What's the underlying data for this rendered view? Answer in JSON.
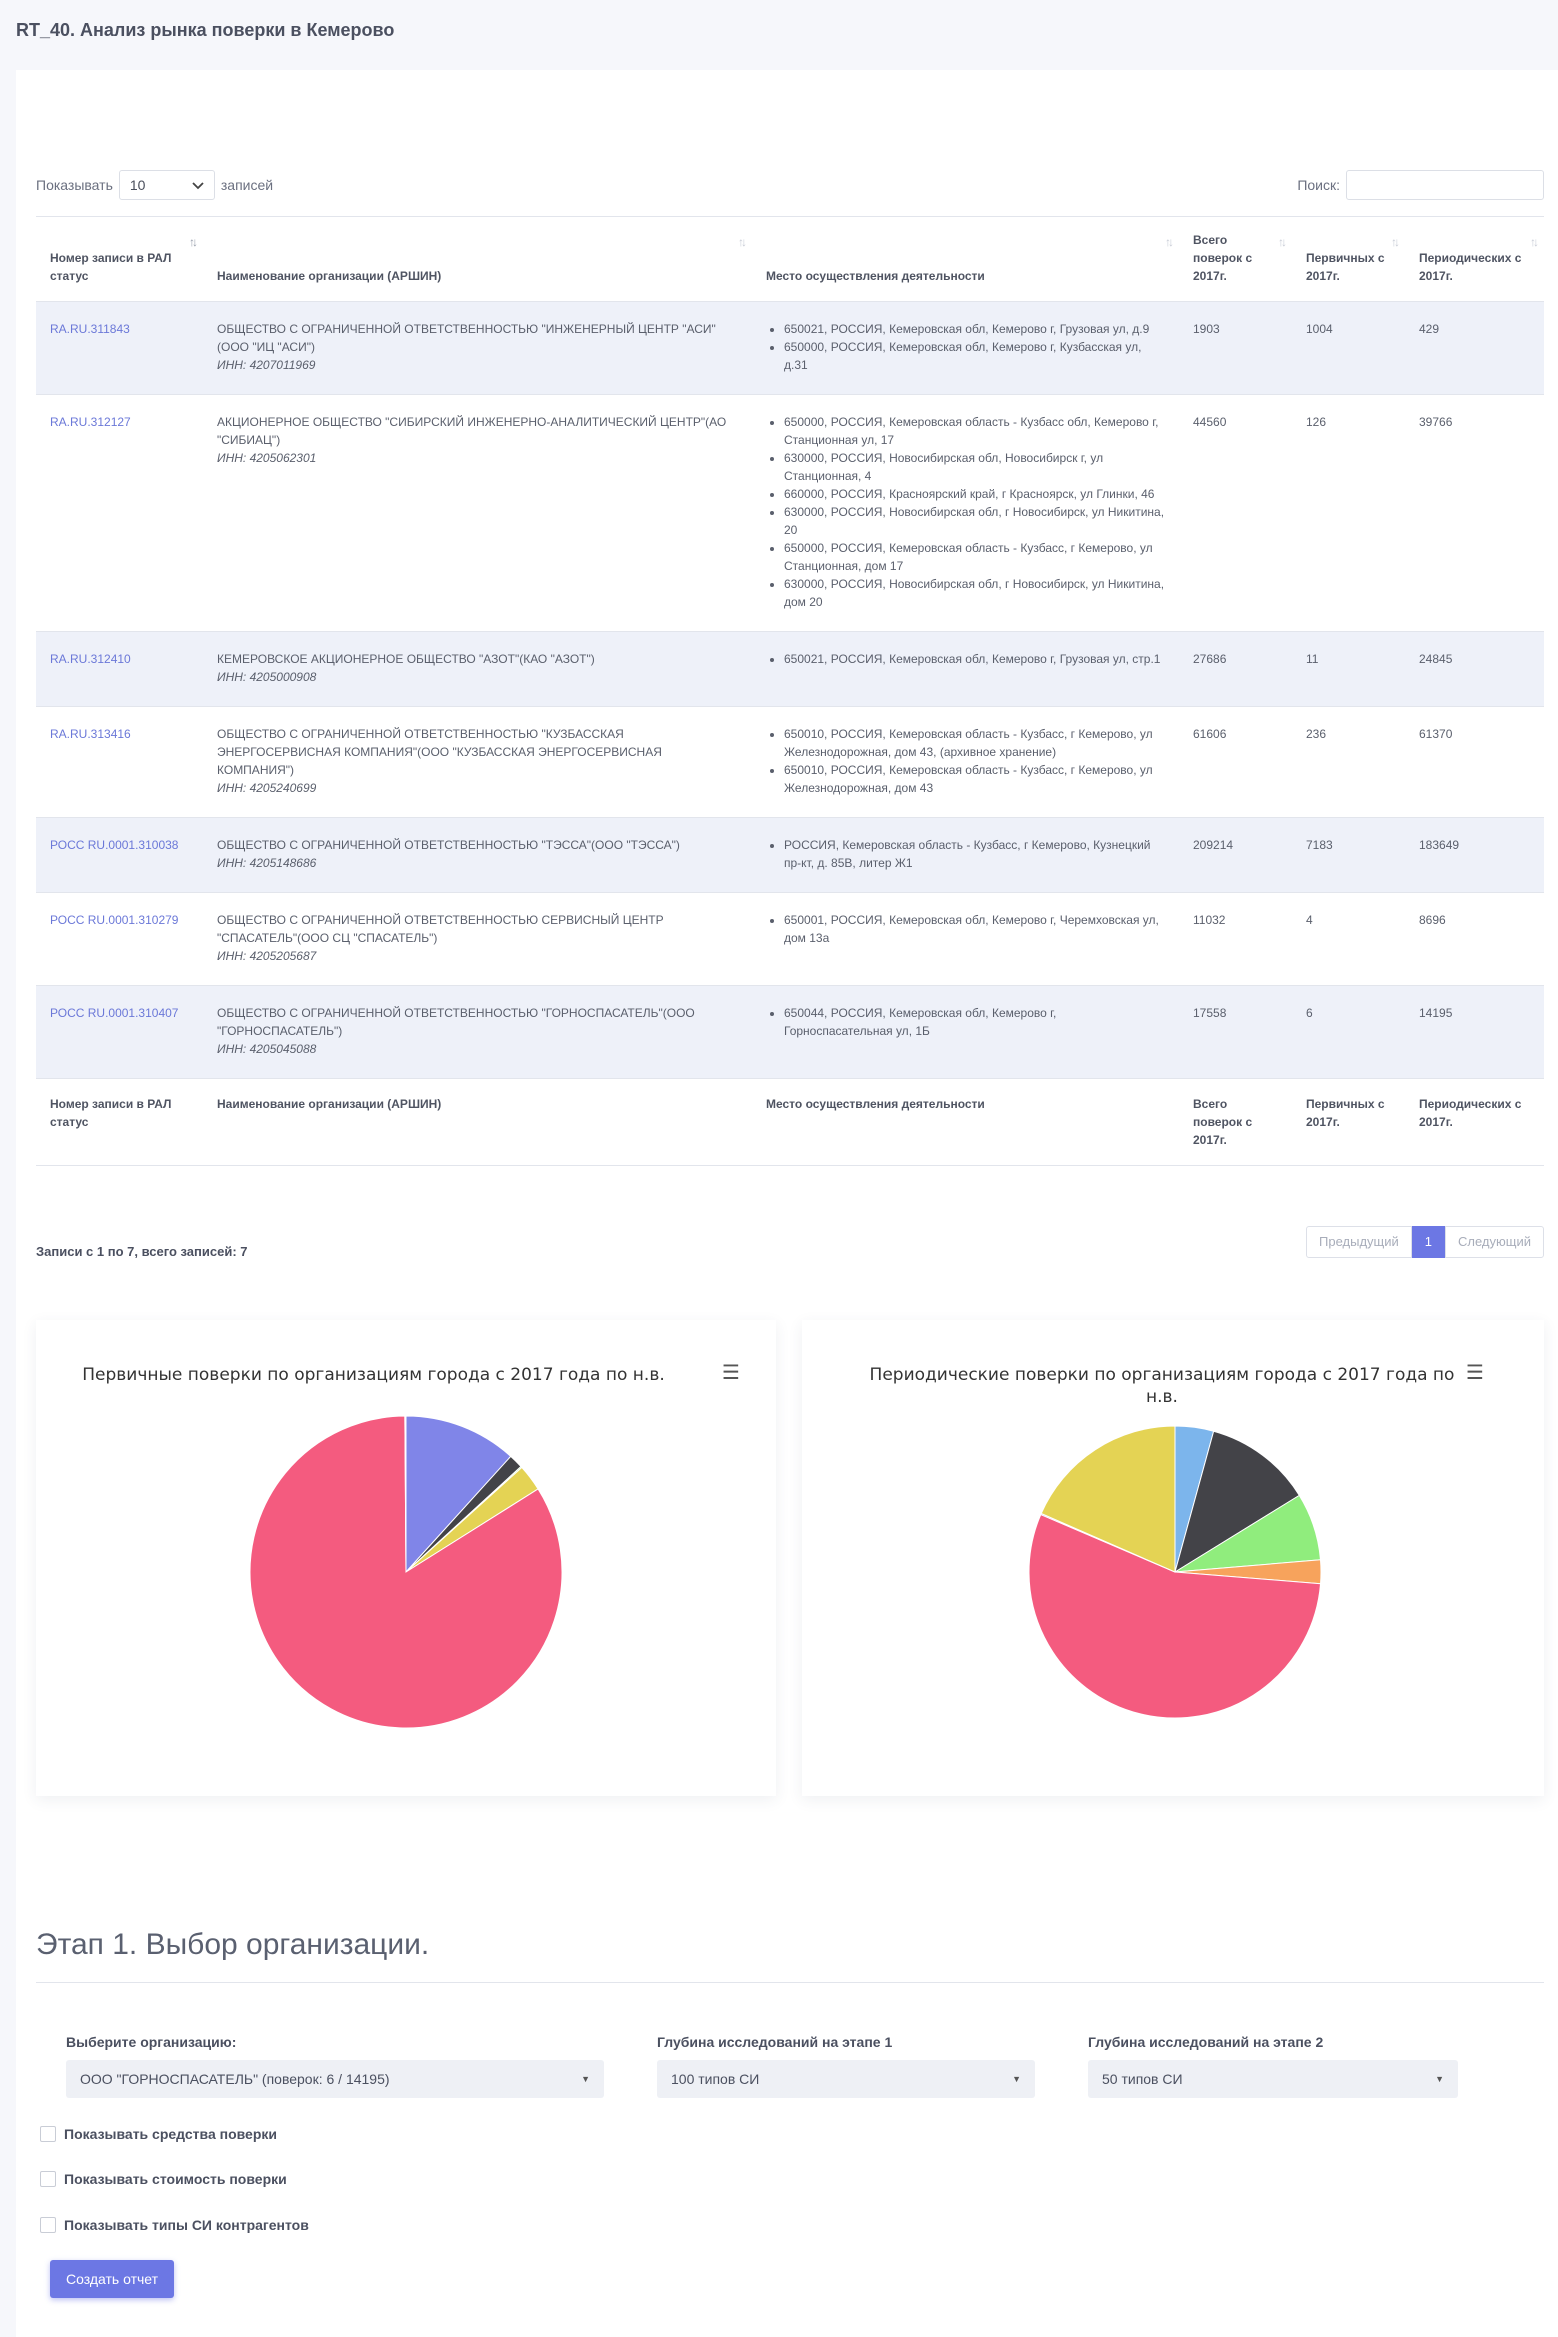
{
  "page_title": "RT_40. Анализ рынка поверки в Кемерово",
  "length_menu": {
    "prefix": "Показывать",
    "value": "10",
    "suffix": "записей"
  },
  "search": {
    "label": "Поиск:"
  },
  "table": {
    "headers": [
      "Номер записи в РАЛ статус",
      "Наименование организации (АРШИН)",
      "Место осуществления деятельности",
      "Всего поверок с 2017г.",
      "Первичных с 2017г.",
      "Периодических с 2017г."
    ],
    "rows": [
      {
        "reg": "RA.RU.311843",
        "name": "ОБЩЕСТВО С ОГРАНИЧЕННОЙ ОТВЕТСТВЕННОСТЬЮ \"ИНЖЕНЕРНЫЙ ЦЕНТР \"АСИ\" (ООО \"ИЦ \"АСИ\")",
        "inn": "ИНН: 4207011969",
        "locations": [
          "650021, РОССИЯ, Кемеровская обл, Кемерово г, Грузовая ул, д.9",
          "650000, РОССИЯ, Кемеровская обл, Кемерово г, Кузбасская ул, д.31"
        ],
        "total": "1903",
        "primary": "1004",
        "periodic": "429"
      },
      {
        "reg": "RA.RU.312127",
        "name": "АКЦИОНЕРНОЕ ОБЩЕСТВО \"СИБИРСКИЙ ИНЖЕНЕРНО-АНАЛИТИЧЕСКИЙ ЦЕНТР\"(АО \"СИБИАЦ\")",
        "inn": "ИНН: 4205062301",
        "locations": [
          "650000, РОССИЯ, Кемеровская область - Кузбасс обл, Кемерово г, Станционная ул, 17",
          "630000, РОССИЯ, Новосибирская обл, Новосибирск г, ул Станционная, 4",
          "660000, РОССИЯ, Красноярский край, г Красноярск, ул Глинки, 46",
          "630000, РОССИЯ, Новосибирская обл, г Новосибирск, ул Никитина, 20",
          "650000, РОССИЯ, Кемеровская область - Кузбасс, г Кемерово, ул Станционная, дом 17",
          "630000, РОССИЯ, Новосибирская обл, г Новосибирск, ул Никитина, дом 20"
        ],
        "total": "44560",
        "primary": "126",
        "periodic": "39766"
      },
      {
        "reg": "RA.RU.312410",
        "name": "КЕМЕРОВСКОЕ АКЦИОНЕРНОЕ ОБЩЕСТВО \"АЗОТ\"(КАО \"АЗОТ\")",
        "inn": "ИНН: 4205000908",
        "locations": [
          "650021, РОССИЯ, Кемеровская обл, Кемерово г, Грузовая ул, стр.1"
        ],
        "total": "27686",
        "primary": "11",
        "periodic": "24845"
      },
      {
        "reg": "RA.RU.313416",
        "name": "ОБЩЕСТВО С ОГРАНИЧЕННОЙ ОТВЕТСТВЕННОСТЬЮ \"КУЗБАССКАЯ ЭНЕРГОСЕРВИСНАЯ КОМПАНИЯ\"(ООО \"КУЗБАССКАЯ ЭНЕРГОСЕРВИСНАЯ КОМПАНИЯ\")",
        "inn": "ИНН: 4205240699",
        "locations": [
          "650010, РОССИЯ, Кемеровская область - Кузбасс, г Кемерово, ул Железнодорожная, дом 43, (архивное хранение)",
          "650010, РОССИЯ, Кемеровская область - Кузбасс, г Кемерово, ул Железнодорожная, дом 43"
        ],
        "total": "61606",
        "primary": "236",
        "periodic": "61370"
      },
      {
        "reg": "РОСС RU.0001.310038",
        "name": "ОБЩЕСТВО С ОГРАНИЧЕННОЙ ОТВЕТСТВЕННОСТЬЮ \"ТЭССА\"(ООО \"ТЭССА\")",
        "inn": "ИНН: 4205148686",
        "locations": [
          "РОССИЯ, Кемеровская область - Кузбасс, г Кемерово, Кузнецкий пр-кт, д. 85В, литер Ж1"
        ],
        "total": "209214",
        "primary": "7183",
        "periodic": "183649"
      },
      {
        "reg": "РОСС RU.0001.310279",
        "name": "ОБЩЕСТВО С ОГРАНИЧЕННОЙ ОТВЕТСТВЕННОСТЬЮ СЕРВИСНЫЙ ЦЕНТР \"СПАСАТЕЛЬ\"(ООО СЦ \"СПАСАТЕЛЬ\")",
        "inn": "ИНН: 4205205687",
        "locations": [
          "650001, РОССИЯ, Кемеровская обл, Кемерово г, Черемховская ул, дом 13а"
        ],
        "total": "11032",
        "primary": "4",
        "periodic": "8696"
      },
      {
        "reg": "РОСС RU.0001.310407",
        "name": "ОБЩЕСТВО С ОГРАНИЧЕННОЙ ОТВЕТСТВЕННОСТЬЮ \"ГОРНОСПАСАТЕЛЬ\"(ООО \"ГОРНОСПАСАТЕЛЬ\")",
        "inn": "ИНН: 4205045088",
        "locations": [
          "650044, РОССИЯ, Кемеровская обл, Кемерово г, Горноспасательная ул, 1Б"
        ],
        "total": "17558",
        "primary": "6",
        "periodic": "14195"
      }
    ]
  },
  "table_info": "Записи с 1 по 7, всего записей: 7",
  "pagination": {
    "prev": "Предыдущий",
    "current": "1",
    "next": "Следующий"
  },
  "chart_data": [
    {
      "type": "pie",
      "title": "Первичные поверки по организациям города с 2017 года по н.в.",
      "values": [
        1004,
        126,
        11,
        236,
        7183,
        4,
        6
      ],
      "colors": [
        "#8085e8",
        "#434348",
        "#90ed7d",
        "#e4d354",
        "#f45b7f",
        "#f7a35c",
        "#7cb5ec"
      ]
    },
    {
      "type": "pie",
      "title": "Периодические поверки по организациям города с 2017 года по н.в.",
      "values": [
        14195,
        39766,
        24845,
        8696,
        183649,
        429,
        61370
      ],
      "colors": [
        "#7cb5ec",
        "#434348",
        "#90ed7d",
        "#f7a35c",
        "#f45b7f",
        "#8085e9",
        "#e4d354"
      ]
    }
  ],
  "stage": {
    "title": "Этап 1. Выбор организации.",
    "org_label": "Выберите организацию:",
    "org_value": "ООО \"ГОРНОСПАСАТЕЛЬ\" (поверок: 6 / 14195)",
    "depth1_label": "Глубина исследований на этапе 1",
    "depth1_value": "100 типов СИ",
    "depth2_label": "Глубина исследований на этапе 2",
    "depth2_value": "50 типов СИ",
    "checkboxes": [
      "Показывать средства поверки",
      "Показывать стоимость поверки",
      "Показывать типы СИ контрагентов"
    ],
    "create_button": "Создать отчет"
  }
}
